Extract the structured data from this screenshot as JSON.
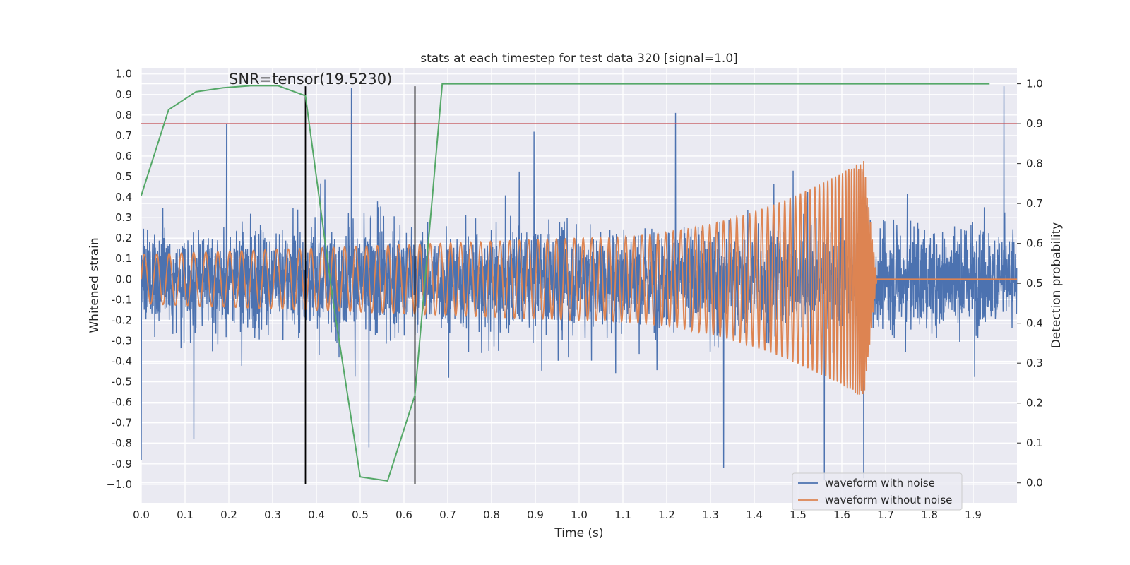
{
  "chart_data": {
    "type": "line",
    "title": "stats at each timestep for test data 320 [signal=1.0]",
    "xlabel": "Time (s)",
    "ylabel": "Whitened strain",
    "y2label": "Detection probability",
    "xlim": [
      0.0,
      2.0
    ],
    "ylim": [
      -1.09,
      1.03
    ],
    "y2lim": [
      -0.05,
      1.04
    ],
    "x_ticks": [
      0.0,
      0.1,
      0.2,
      0.3,
      0.4,
      0.5,
      0.6,
      0.7,
      0.8,
      0.9,
      1.0,
      1.1,
      1.2,
      1.3,
      1.4,
      1.5,
      1.6,
      1.7,
      1.8,
      1.9
    ],
    "x_tick_labels": [
      "0.0",
      "0.1",
      "0.2",
      "0.3",
      "0.4",
      "0.5",
      "0.6",
      "0.7",
      "0.8",
      "0.9",
      "1.0",
      "1.1",
      "1.2",
      "1.3",
      "1.4",
      "1.5",
      "1.6",
      "1.7",
      "1.8",
      "1.9"
    ],
    "y_ticks": [
      1.0,
      0.9,
      0.8,
      0.7,
      0.6,
      0.5,
      0.4,
      0.3,
      0.2,
      0.1,
      0.0,
      -0.1,
      -0.2,
      -0.3,
      -0.4,
      -0.5,
      -0.6,
      -0.7,
      -0.8,
      -0.9,
      -1.0
    ],
    "y_tick_labels": [
      "1.0",
      "0.9",
      "0.8",
      "0.7",
      "0.6",
      "0.5",
      "0.4",
      "0.3",
      "0.2",
      "0.1",
      "0.0",
      "-0.1",
      "-0.2",
      "-0.3",
      "-0.4",
      "-0.5",
      "-0.6",
      "-0.7",
      "-0.8",
      "-0.9",
      "−1.0"
    ],
    "y2_ticks": [
      1.0,
      0.9,
      0.8,
      0.7,
      0.6,
      0.5,
      0.4,
      0.3,
      0.2,
      0.1,
      0.0
    ],
    "y2_tick_labels": [
      "1.0",
      "0.9",
      "0.8",
      "0.7",
      "0.6",
      "0.5",
      "0.4",
      "0.3",
      "0.2",
      "0.1",
      "0.0"
    ],
    "annotation": "SNR=tensor(19.5230)",
    "annotation_position": {
      "x": 0.2,
      "y": 0.95
    },
    "threshold": {
      "axis": "y2",
      "value": 0.9,
      "color": "#c44e52"
    },
    "vertical_markers": [
      {
        "x": 0.375,
        "y_from": -1.0,
        "y_to": 0.94,
        "color": "#000000"
      },
      {
        "x": 0.625,
        "y_from": -1.0,
        "y_to": 0.94,
        "color": "#000000"
      }
    ],
    "noisy_waveform": {
      "name": "waveform with noise",
      "color": "#4c72b0",
      "sample_rate": 2048,
      "duration": 2.0,
      "typical_amplitude": 0.3,
      "peak_spikes": [
        {
          "x": 0.48,
          "y": 0.93
        },
        {
          "x": 1.97,
          "y": 0.94
        },
        {
          "x": 1.22,
          "y": 0.81
        },
        {
          "x": 0.195,
          "y": 0.76
        },
        {
          "x": 0.0,
          "y": -0.88
        },
        {
          "x": 0.52,
          "y": -0.82
        },
        {
          "x": 1.56,
          "y": -0.98
        },
        {
          "x": 1.65,
          "y": -0.97
        },
        {
          "x": 1.33,
          "y": -0.92
        },
        {
          "x": 0.12,
          "y": -0.78
        }
      ]
    },
    "clean_waveform": {
      "name": "waveform without noise",
      "color": "#dd8452",
      "type": "chirp",
      "start_frequency_hz": 35,
      "merger_time": 1.65,
      "ringdown_end": 1.68,
      "amplitude_start": 0.12,
      "amplitude_mid": 0.2,
      "amplitude_peak": 0.58,
      "post_merger_value": 0.0
    },
    "detection_probability": {
      "name": "detection probability",
      "axis": "y2",
      "color": "#55a868",
      "x": [
        0.0,
        0.0625,
        0.125,
        0.1875,
        0.25,
        0.3125,
        0.375,
        0.4375,
        0.5,
        0.5625,
        0.625,
        0.6875,
        0.75,
        0.8125,
        0.875,
        0.9375,
        1.0,
        1.0625,
        1.125,
        1.1875,
        1.25,
        1.3125,
        1.375,
        1.4375,
        1.5,
        1.5625,
        1.625,
        1.6875,
        1.75,
        1.8125,
        1.875,
        1.9375
      ],
      "y": [
        0.72,
        0.935,
        0.98,
        0.99,
        0.995,
        0.995,
        0.97,
        0.46,
        0.015,
        0.005,
        0.22,
        1.0,
        1.0,
        1.0,
        1.0,
        1.0,
        1.0,
        1.0,
        1.0,
        1.0,
        1.0,
        1.0,
        1.0,
        1.0,
        1.0,
        1.0,
        1.0,
        1.0,
        1.0,
        1.0,
        1.0,
        1.0
      ]
    },
    "legend": {
      "placement": "lower-right",
      "entries": [
        {
          "label": "waveform with noise",
          "color": "#4c72b0"
        },
        {
          "label": "waveform without noise",
          "color": "#dd8452"
        }
      ]
    }
  }
}
